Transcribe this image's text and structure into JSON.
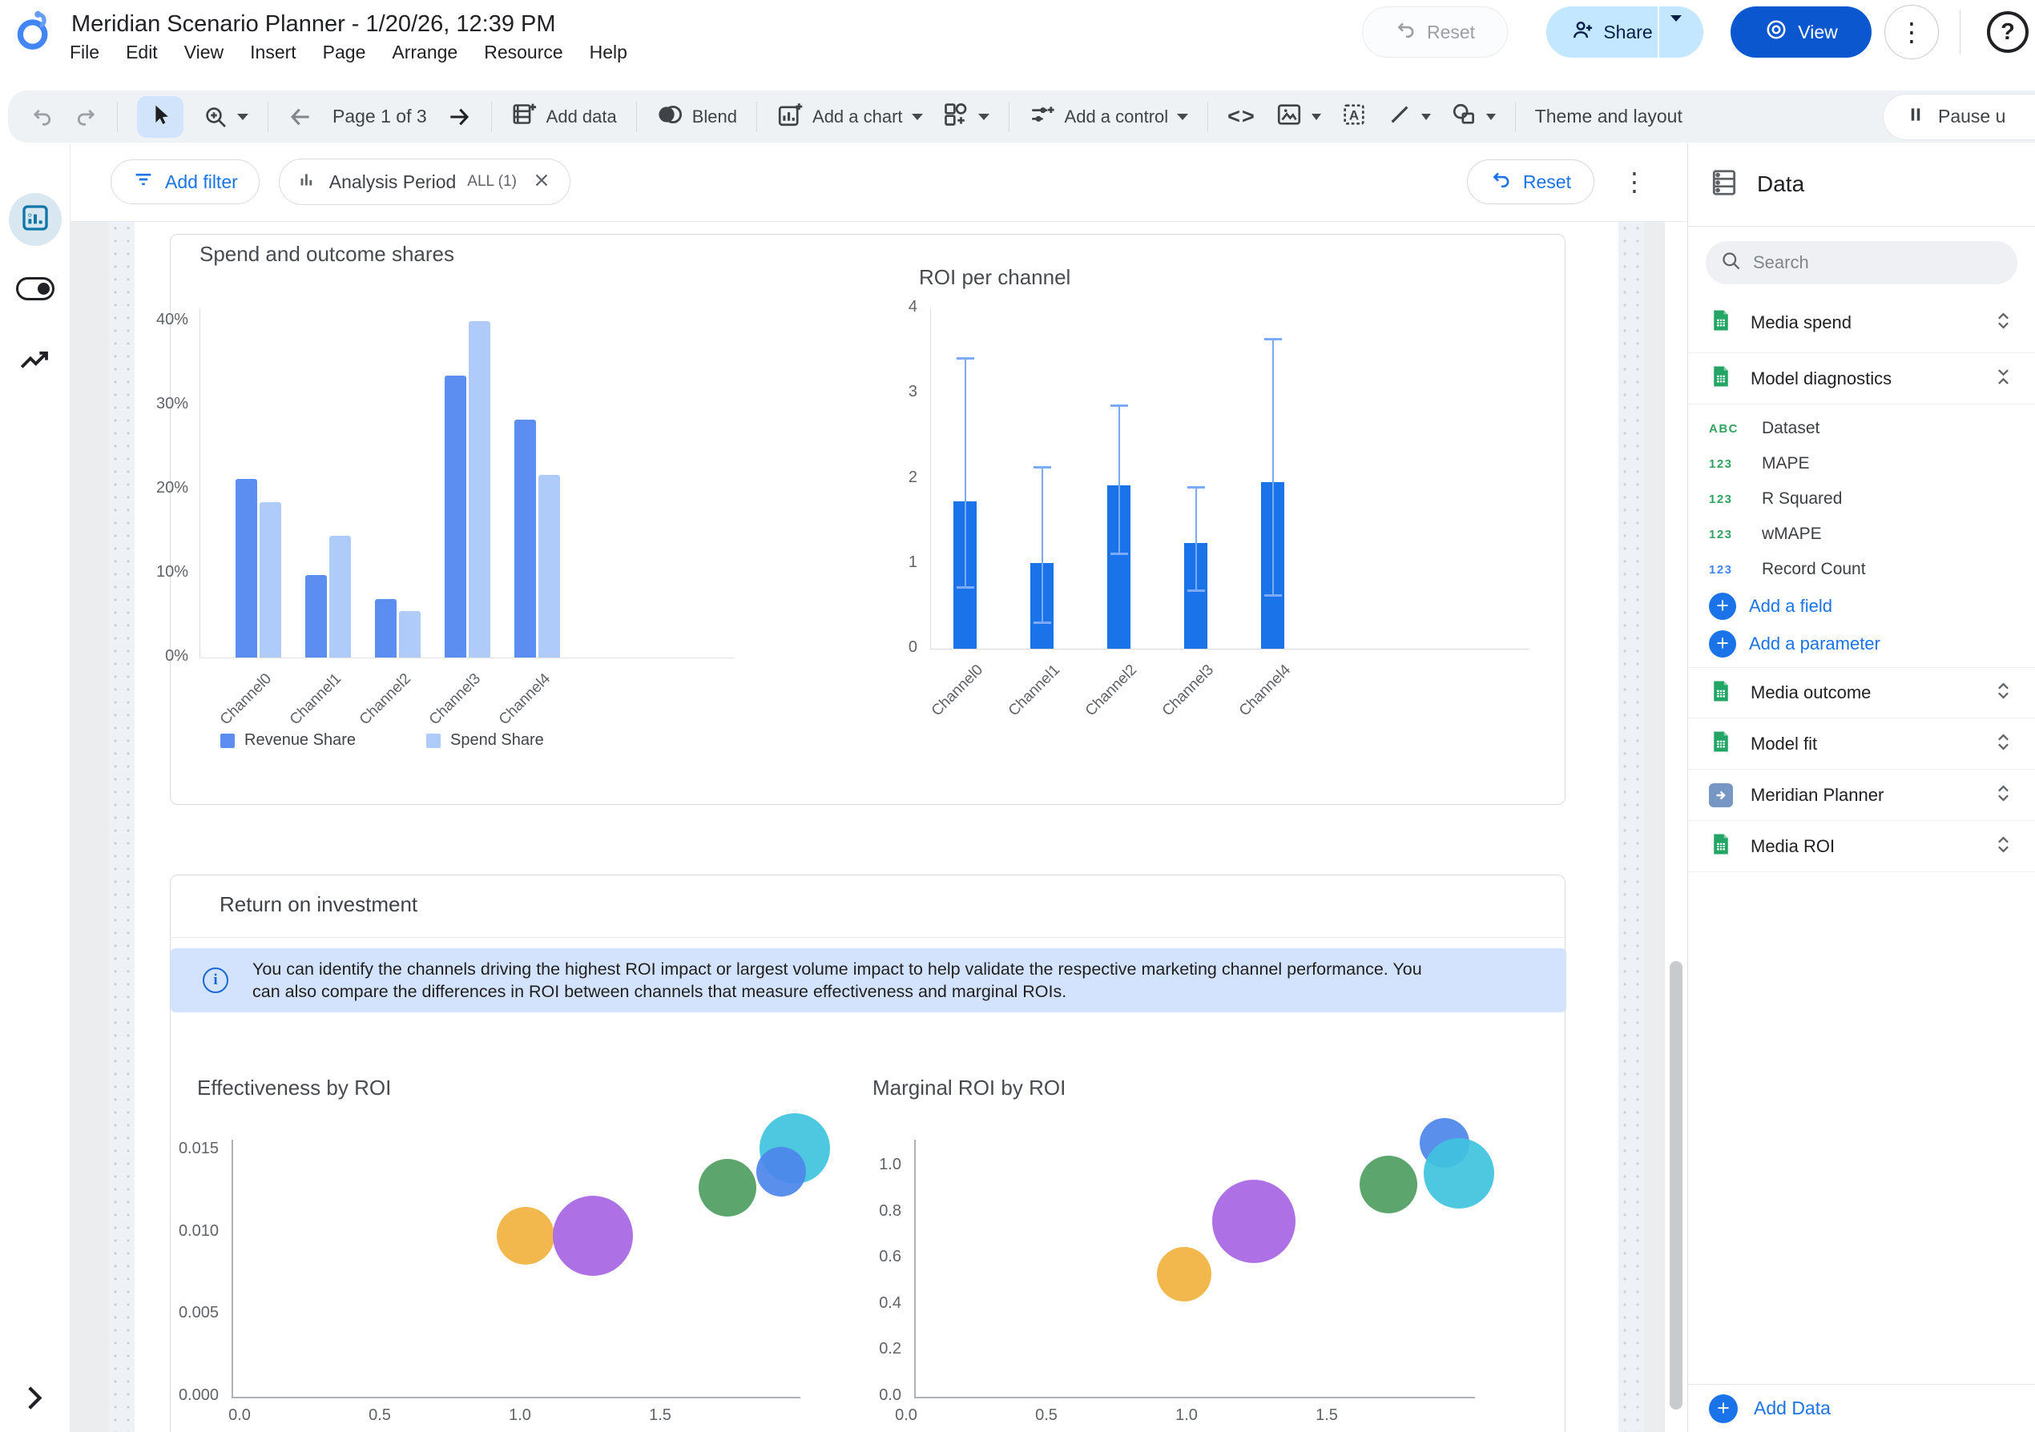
{
  "colors": {
    "accent_blue": "#1a73e8",
    "view_button_bg": "#0b57d0",
    "share_button_bg": "#c2e7ff",
    "revenue_share": "#5c8df0",
    "spend_share": "#aecbfa",
    "roi_bar": "#1a73e8",
    "error_bar": "#7baaf7",
    "banner_bg": "#d3e3fd",
    "bubble_yellow": "#f2b23e",
    "bubble_purple": "#a765e3",
    "bubble_green": "#4e9e61",
    "bubble_cyan": "#3fc2de",
    "bubble_blue": "#4d86ea",
    "sheets_green": "#23a566",
    "field_green": "#2fa35f",
    "field_blue": "#4285f4"
  },
  "glyphs": {
    "kebab": "⋮",
    "help": "?",
    "plus": "+",
    "code": "<>",
    "text_tool_letter": "A"
  },
  "header": {
    "title": "Meridian Scenario Planner - 1/20/26, 12:39 PM",
    "menu": [
      "File",
      "Edit",
      "View",
      "Insert",
      "Page",
      "Arrange",
      "Resource",
      "Help"
    ],
    "reset_label": "Reset",
    "share_label": "Share",
    "view_label": "View"
  },
  "toolbar": {
    "page_label": "Page 1 of 3",
    "add_data": "Add data",
    "blend": "Blend",
    "add_chart": "Add a chart",
    "add_control": "Add a control",
    "theme_layout": "Theme and layout",
    "pause": "Pause u"
  },
  "filterbar": {
    "add_filter": "Add filter",
    "chip_label": "Analysis Period",
    "chip_badge": "ALL (1)",
    "reset": "Reset"
  },
  "section": {
    "title": "Return on investment",
    "info_text": "You can identify the channels driving the highest ROI impact or largest volume impact to help validate the respective marketing channel performance. You can also compare the differences in ROI between channels that measure effectiveness and marginal ROIs."
  },
  "datapanel": {
    "title": "Data",
    "search_placeholder": "Search",
    "sources": [
      {
        "label": "Media spend",
        "state": "collapsed"
      },
      {
        "label": "Model diagnostics",
        "state": "expanded"
      },
      {
        "label": "Media outcome",
        "state": "collapsed"
      },
      {
        "label": "Model fit",
        "state": "collapsed"
      },
      {
        "label": "Meridian Planner",
        "state": "collapsed"
      },
      {
        "label": "Media ROI",
        "state": "collapsed"
      }
    ],
    "diagnostics_fields": [
      {
        "badge": "ABC",
        "label": "Dataset",
        "color": "green"
      },
      {
        "badge": "123",
        "label": "MAPE",
        "color": "green"
      },
      {
        "badge": "123",
        "label": "R Squared",
        "color": "green"
      },
      {
        "badge": "123",
        "label": "wMAPE",
        "color": "green"
      },
      {
        "badge": "123",
        "label": "Record Count",
        "color": "blue"
      }
    ],
    "add_field": "Add a field",
    "add_parameter": "Add a parameter",
    "add_data": "Add Data"
  },
  "chart_data": [
    {
      "type": "bar",
      "title": "Spend and outcome shares",
      "categories": [
        "Channel0",
        "Channel1",
        "Channel2",
        "Channel3",
        "Channel4"
      ],
      "series": [
        {
          "name": "Revenue Share",
          "values": [
            21.2,
            9.8,
            7.0,
            33.5,
            28.3
          ]
        },
        {
          "name": "Spend Share",
          "values": [
            18.5,
            14.5,
            5.5,
            40.0,
            21.7
          ]
        }
      ],
      "yticks": [
        0,
        10,
        20,
        30,
        40
      ],
      "ytick_labels": [
        "0%",
        "10%",
        "20%",
        "30%",
        "40%"
      ],
      "ylim": [
        0,
        42
      ],
      "unit": "%",
      "grid": false,
      "legend_position": "bottom"
    },
    {
      "type": "bar",
      "title": "ROI per channel",
      "categories": [
        "Channel0",
        "Channel1",
        "Channel2",
        "Channel3",
        "Channel4"
      ],
      "values": [
        1.73,
        1.01,
        1.92,
        1.24,
        1.96
      ],
      "error_low": [
        0.73,
        0.32,
        1.13,
        0.7,
        0.64
      ],
      "error_high": [
        3.43,
        2.15,
        2.87,
        1.91,
        3.65
      ],
      "yticks": [
        0,
        1,
        2,
        3,
        4
      ],
      "ytick_labels": [
        "0",
        "1",
        "2",
        "3",
        "4"
      ],
      "ylim": [
        0,
        4
      ],
      "grid": false
    },
    {
      "type": "scatter",
      "title": "Effectiveness by ROI",
      "xticks": [
        0,
        0.5,
        1.0,
        1.5
      ],
      "xtick_labels": [
        "0.0",
        "0.5",
        "1.0",
        "1.5"
      ],
      "yticks": [
        0,
        0.005,
        0.01,
        0.015
      ],
      "ytick_labels": [
        "0.000",
        "0.005",
        "0.010",
        "0.015"
      ],
      "xlim": [
        0,
        2.1
      ],
      "ylim": [
        0,
        0.0157
      ],
      "points": [
        {
          "color": "yellow",
          "x": 1.02,
          "y": 0.0098,
          "r": 36
        },
        {
          "color": "purple",
          "x": 1.26,
          "y": 0.0098,
          "r": 50
        },
        {
          "color": "green",
          "x": 1.74,
          "y": 0.0127,
          "r": 36
        },
        {
          "color": "cyan",
          "x": 1.98,
          "y": 0.0151,
          "r": 44
        },
        {
          "color": "blue",
          "x": 1.93,
          "y": 0.0137,
          "r": 31
        }
      ]
    },
    {
      "type": "scatter",
      "title": "Marginal ROI by ROI",
      "xticks": [
        0,
        0.5,
        1.0,
        1.5
      ],
      "xtick_labels": [
        "0.0",
        "0.5",
        "1.0",
        "1.5"
      ],
      "yticks": [
        0,
        0.2,
        0.4,
        0.6,
        0.8,
        1.0
      ],
      "ytick_labels": [
        "0.0",
        "0.2",
        "0.4",
        "0.6",
        "0.8",
        "1.0"
      ],
      "xlim": [
        0,
        2.1
      ],
      "ylim": [
        0,
        1.15
      ],
      "points": [
        {
          "color": "yellow",
          "x": 0.99,
          "y": 0.53,
          "r": 34
        },
        {
          "color": "purple",
          "x": 1.24,
          "y": 0.76,
          "r": 52
        },
        {
          "color": "green",
          "x": 1.72,
          "y": 0.92,
          "r": 36
        },
        {
          "color": "blue",
          "x": 1.92,
          "y": 1.1,
          "r": 31
        },
        {
          "color": "cyan",
          "x": 1.97,
          "y": 0.97,
          "r": 44
        }
      ]
    }
  ]
}
